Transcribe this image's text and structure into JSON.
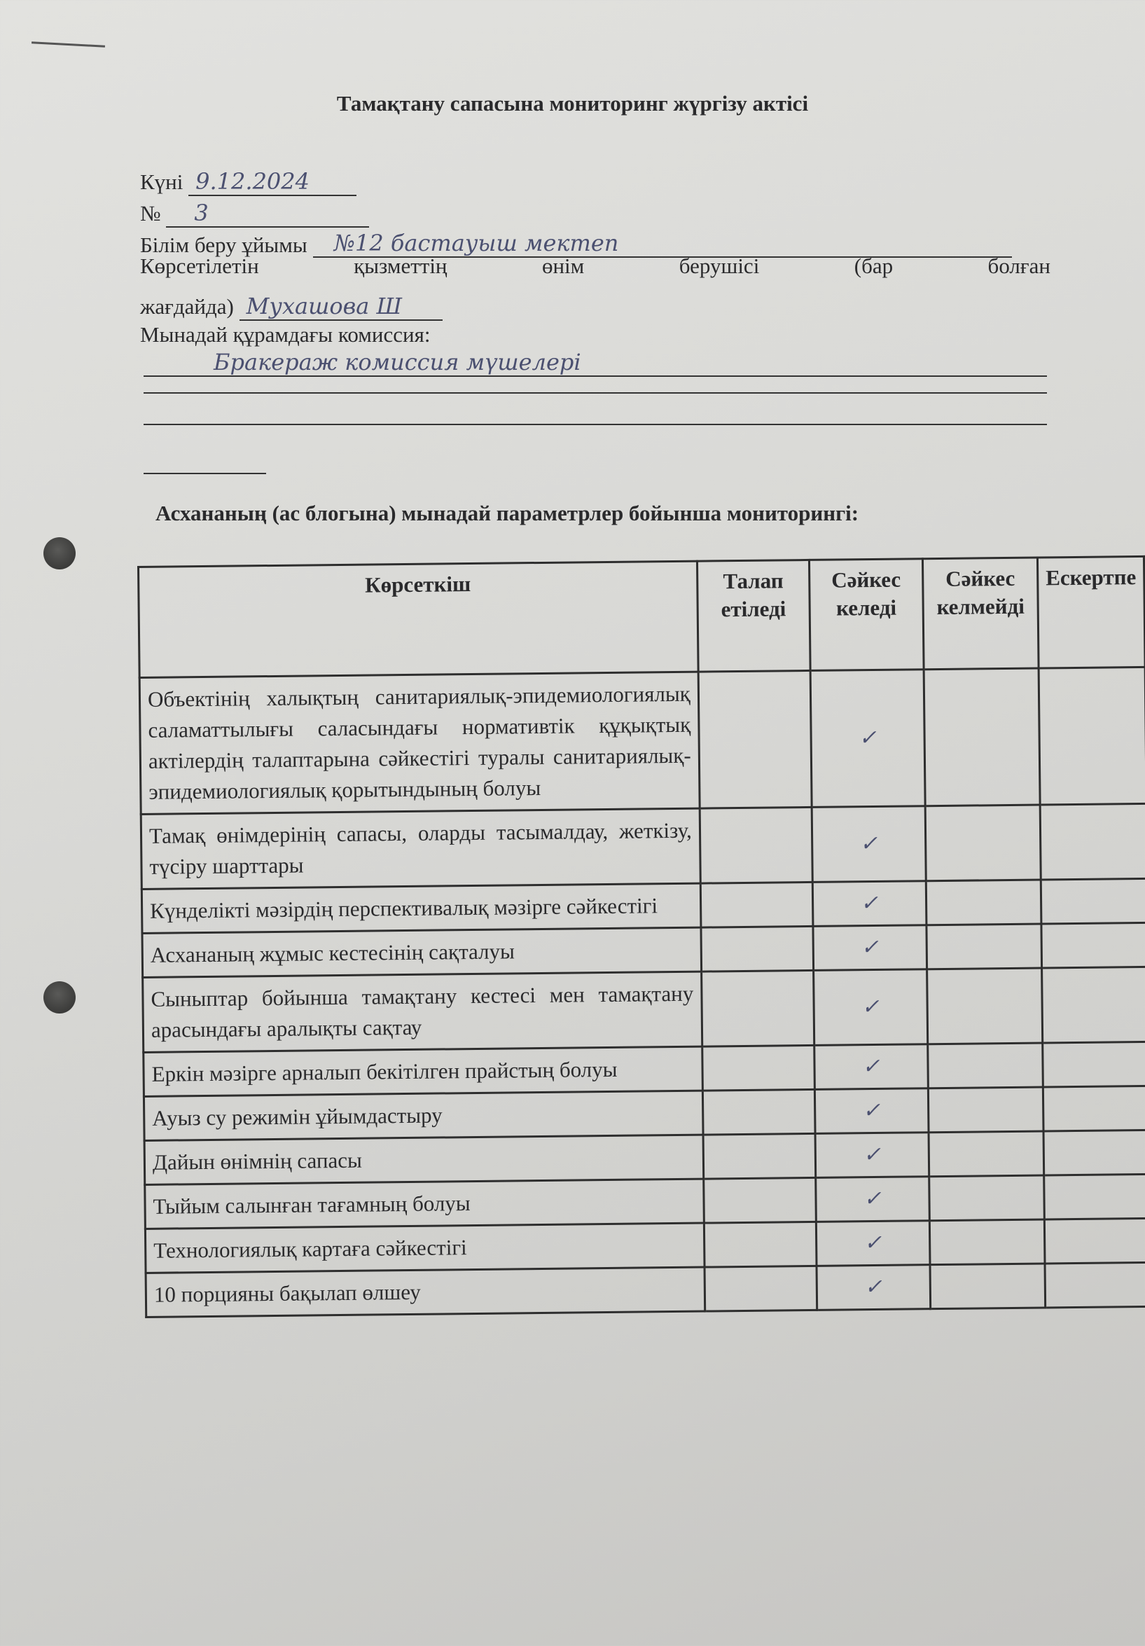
{
  "title": "Тамақтану сапасына мониторинг жүргізу актісі",
  "fields": {
    "date_label": "Күні",
    "date_value": "9.12.2024",
    "number_label": "№",
    "number_value": "3",
    "org_label": "Білім беру ұйымы",
    "org_value": "№12 бастауыш мектеп",
    "provider_label_line1": [
      "Көрсетілетін",
      "қызметтің",
      "өнім",
      "берушісі",
      "(бар",
      "болған"
    ],
    "provider_label_line2": "жағдайда)",
    "provider_value": "Мухашова Ш",
    "commission_label": "Мынадай құрамдағы комиссия:",
    "commission_value": "Бракераж комиссия мүшелері"
  },
  "section_heading": "Асхананың (ас блогына) мынадай параметрлер бойынша мониторингі:",
  "table": {
    "headers": [
      "Көрсеткіш",
      "Талап етіледі",
      "Сәйкес келеді",
      "Сәйкес келмейді",
      "Ескертпе"
    ],
    "rows": [
      {
        "indicator": "Объектінің халықтың санитариялық-эпидемиологиялық саламаттылығы саласындағы нормативтік құқықтық актілердің талаптарына сәйкестігі туралы санитариялық-эпидемиологиялық қорытындының болуы",
        "required": "",
        "complies": "✓",
        "not_complies": "",
        "note": ""
      },
      {
        "indicator": "Тамақ өнімдерінің сапасы, оларды тасымалдау, жеткізу, түсіру шарттары",
        "required": "",
        "complies": "✓",
        "not_complies": "",
        "note": ""
      },
      {
        "indicator": "Күнделікті мәзірдің перспективалық мәзірге сәйкестігі",
        "required": "",
        "complies": "✓",
        "not_complies": "",
        "note": ""
      },
      {
        "indicator": "Асхананың жұмыс кестесінің сақталуы",
        "required": "",
        "complies": "✓",
        "not_complies": "",
        "note": ""
      },
      {
        "indicator": "Сыныптар бойынша тамақтану кестесі мен тамақтану арасындағы аралықты сақтау",
        "required": "",
        "complies": "✓",
        "not_complies": "",
        "note": ""
      },
      {
        "indicator": "Еркін мәзірге арналып бекітілген прайстың болуы",
        "required": "",
        "complies": "✓",
        "not_complies": "",
        "note": ""
      },
      {
        "indicator": "Ауыз су режимін ұйымдастыру",
        "required": "",
        "complies": "✓",
        "not_complies": "",
        "note": ""
      },
      {
        "indicator": "Дайын өнімнің сапасы",
        "required": "",
        "complies": "✓",
        "not_complies": "",
        "note": ""
      },
      {
        "indicator": "Тыйым салынған тағамның болуы",
        "required": "",
        "complies": "✓",
        "not_complies": "",
        "note": ""
      },
      {
        "indicator": "Технологиялық картаға сәйкестігі",
        "required": "",
        "complies": "✓",
        "not_complies": "",
        "note": ""
      },
      {
        "indicator": "10 порцияны бақылап өлшеу",
        "required": "",
        "complies": "✓",
        "not_complies": "",
        "note": ""
      }
    ]
  }
}
